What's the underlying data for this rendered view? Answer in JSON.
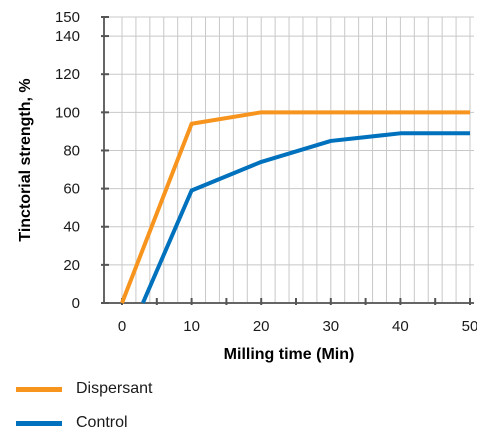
{
  "chart_data": {
    "type": "line",
    "title": "",
    "xlabel": "Milling time (Min)",
    "ylabel": "Tinctorial strength, %",
    "xlim": [
      0,
      50
    ],
    "ylim": [
      0,
      150
    ],
    "xticks": [
      0,
      10,
      20,
      30,
      40,
      50
    ],
    "yticks": [
      0,
      20,
      40,
      60,
      80,
      100,
      120,
      140,
      150
    ],
    "grid": true,
    "legend_position": "bottom-left",
    "series": [
      {
        "name": "Dispersant",
        "color": "#f7941d",
        "x": [
          0,
          10,
          20,
          30,
          40,
          50
        ],
        "y": [
          0,
          94,
          100,
          100,
          100,
          100
        ]
      },
      {
        "name": "Control",
        "color": "#0071bc",
        "x": [
          3,
          10,
          20,
          30,
          40,
          50
        ],
        "y": [
          0,
          59,
          74,
          85,
          89,
          89
        ]
      }
    ]
  }
}
